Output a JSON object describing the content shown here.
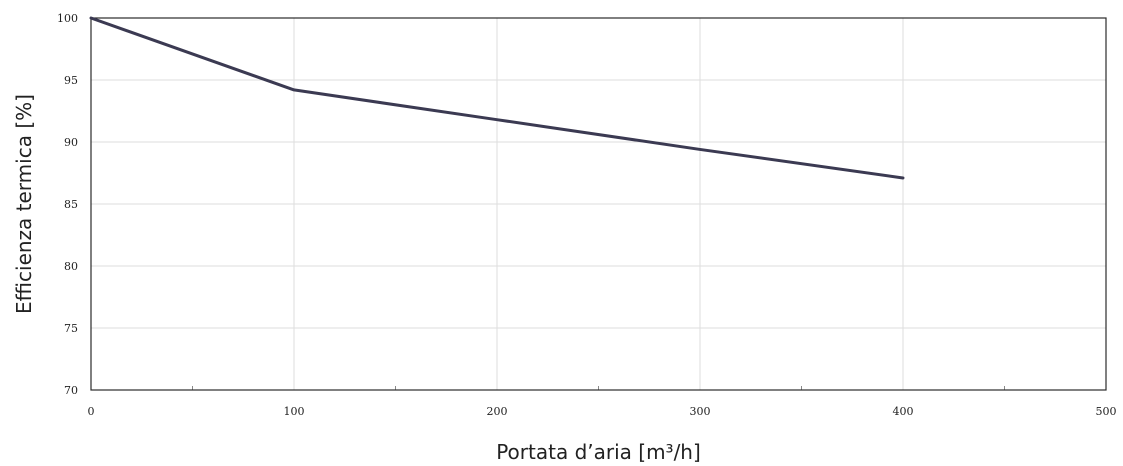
{
  "chart_data": {
    "type": "line",
    "xlabel": "Portata d’aria [m³/h]",
    "ylabel": "Efficienza termica [%]",
    "xlim": [
      0,
      500
    ],
    "ylim": [
      70,
      100
    ],
    "x_ticks": [
      0,
      100,
      200,
      300,
      400,
      500
    ],
    "y_ticks": [
      70,
      75,
      80,
      85,
      90,
      95,
      100
    ],
    "x_minor_ticks": [
      50,
      150,
      250,
      350,
      450
    ],
    "grid": true,
    "series": [
      {
        "color": "#3b3a52",
        "x": [
          0,
          100,
          200,
          300,
          400
        ],
        "y": [
          100,
          94.2,
          91.8,
          89.4,
          87.1
        ]
      }
    ]
  }
}
